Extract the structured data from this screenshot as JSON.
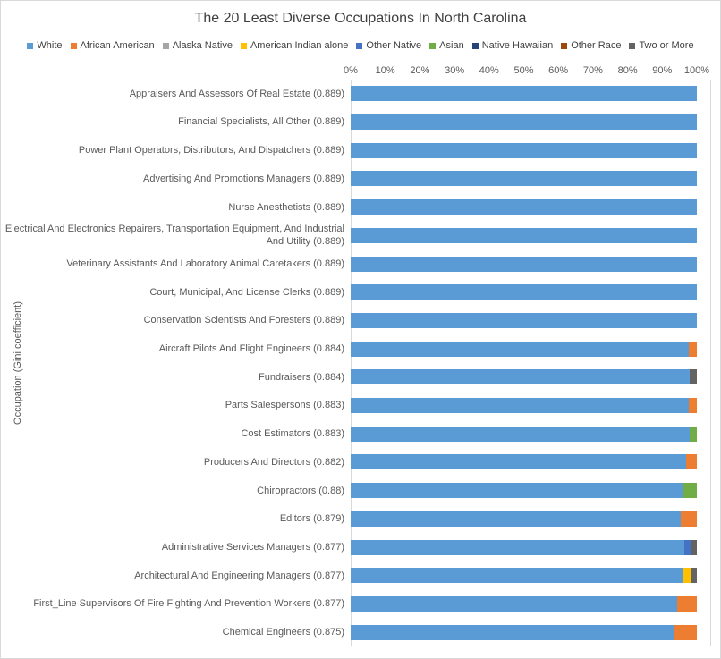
{
  "title": "The 20 Least Diverse Occupations In North Carolina",
  "chart_data": {
    "type": "bar",
    "orientation": "horizontal",
    "stacked": true,
    "title": "The 20 Least Diverse Occupations In North Carolina",
    "xlabel": "",
    "ylabel": "Occupation (Gini coefficient)",
    "xlim": [
      0,
      100
    ],
    "x_ticks": [
      "0%",
      "10%",
      "20%",
      "30%",
      "40%",
      "50%",
      "60%",
      "70%",
      "80%",
      "90%",
      "100%"
    ],
    "grid": false,
    "legend_position": "top",
    "legend": [
      {
        "label": "White",
        "color": "#5B9BD5"
      },
      {
        "label": "African American",
        "color": "#ED7D31"
      },
      {
        "label": "Alaska Native",
        "color": "#A5A5A5"
      },
      {
        "label": "American Indian alone",
        "color": "#FFC000"
      },
      {
        "label": "Other Native",
        "color": "#4472C4"
      },
      {
        "label": "Asian",
        "color": "#70AD47"
      },
      {
        "label": "Native Hawaiian",
        "color": "#264478"
      },
      {
        "label": "Other Race",
        "color": "#9E480E"
      },
      {
        "label": "Two or More",
        "color": "#636363"
      }
    ],
    "rows": [
      {
        "label": "Appraisers And Assessors Of Real Estate (0.889)",
        "gini": 0.889,
        "segments": [
          {
            "series": "White",
            "value": 100
          }
        ]
      },
      {
        "label": "Financial Specialists, All Other (0.889)",
        "gini": 0.889,
        "segments": [
          {
            "series": "White",
            "value": 100
          }
        ]
      },
      {
        "label": "Power Plant Operators, Distributors, And Dispatchers (0.889)",
        "gini": 0.889,
        "segments": [
          {
            "series": "White",
            "value": 100
          }
        ]
      },
      {
        "label": "Advertising And Promotions Managers (0.889)",
        "gini": 0.889,
        "segments": [
          {
            "series": "White",
            "value": 100
          }
        ]
      },
      {
        "label": "Nurse Anesthetists (0.889)",
        "gini": 0.889,
        "segments": [
          {
            "series": "White",
            "value": 100
          }
        ]
      },
      {
        "label": "Electrical And Electronics Repairers, Transportation Equipment, And Industrial And Utility (0.889)",
        "gini": 0.889,
        "segments": [
          {
            "series": "White",
            "value": 100
          }
        ]
      },
      {
        "label": "Veterinary Assistants And Laboratory Animal Caretakers (0.889)",
        "gini": 0.889,
        "segments": [
          {
            "series": "White",
            "value": 100
          }
        ]
      },
      {
        "label": "Court, Municipal, And License Clerks (0.889)",
        "gini": 0.889,
        "segments": [
          {
            "series": "White",
            "value": 100
          }
        ]
      },
      {
        "label": "Conservation Scientists And Foresters (0.889)",
        "gini": 0.889,
        "segments": [
          {
            "series": "White",
            "value": 100
          }
        ]
      },
      {
        "label": "Aircraft Pilots And Flight Engineers (0.884)",
        "gini": 0.884,
        "segments": [
          {
            "series": "White",
            "value": 97.7
          },
          {
            "series": "African American",
            "value": 2.3
          }
        ]
      },
      {
        "label": "Fundraisers (0.884)",
        "gini": 0.884,
        "segments": [
          {
            "series": "White",
            "value": 98.0
          },
          {
            "series": "Two or More",
            "value": 2.0
          }
        ]
      },
      {
        "label": "Parts Salespersons (0.883)",
        "gini": 0.883,
        "segments": [
          {
            "series": "White",
            "value": 97.6
          },
          {
            "series": "African American",
            "value": 2.4
          }
        ]
      },
      {
        "label": "Cost Estimators (0.883)",
        "gini": 0.883,
        "segments": [
          {
            "series": "White",
            "value": 98.0
          },
          {
            "series": "Asian",
            "value": 2.0
          }
        ]
      },
      {
        "label": "Producers And Directors (0.882)",
        "gini": 0.882,
        "segments": [
          {
            "series": "White",
            "value": 96.9
          },
          {
            "series": "African American",
            "value": 3.1
          }
        ]
      },
      {
        "label": "Chiropractors (0.88)",
        "gini": 0.88,
        "segments": [
          {
            "series": "White",
            "value": 95.9
          },
          {
            "series": "Asian",
            "value": 4.1
          }
        ]
      },
      {
        "label": "Editors (0.879)",
        "gini": 0.879,
        "segments": [
          {
            "series": "White",
            "value": 95.3
          },
          {
            "series": "African American",
            "value": 4.7
          }
        ]
      },
      {
        "label": "Administrative Services Managers (0.877)",
        "gini": 0.877,
        "segments": [
          {
            "series": "White",
            "value": 96.4
          },
          {
            "series": "Other Native",
            "value": 1.8
          },
          {
            "series": "Two or More",
            "value": 1.8
          }
        ]
      },
      {
        "label": "Architectural And Engineering Managers (0.877)",
        "gini": 0.877,
        "segments": [
          {
            "series": "White",
            "value": 96.2
          },
          {
            "series": "American Indian alone",
            "value": 2.0
          },
          {
            "series": "Two or More",
            "value": 1.8
          }
        ]
      },
      {
        "label": "First_Line Supervisors Of Fire Fighting And Prevention Workers (0.877)",
        "gini": 0.877,
        "segments": [
          {
            "series": "White",
            "value": 94.4
          },
          {
            "series": "African American",
            "value": 5.6
          }
        ]
      },
      {
        "label": "Chemical Engineers (0.875)",
        "gini": 0.875,
        "segments": [
          {
            "series": "White",
            "value": 93.3
          },
          {
            "series": "African American",
            "value": 6.7
          }
        ]
      }
    ]
  }
}
